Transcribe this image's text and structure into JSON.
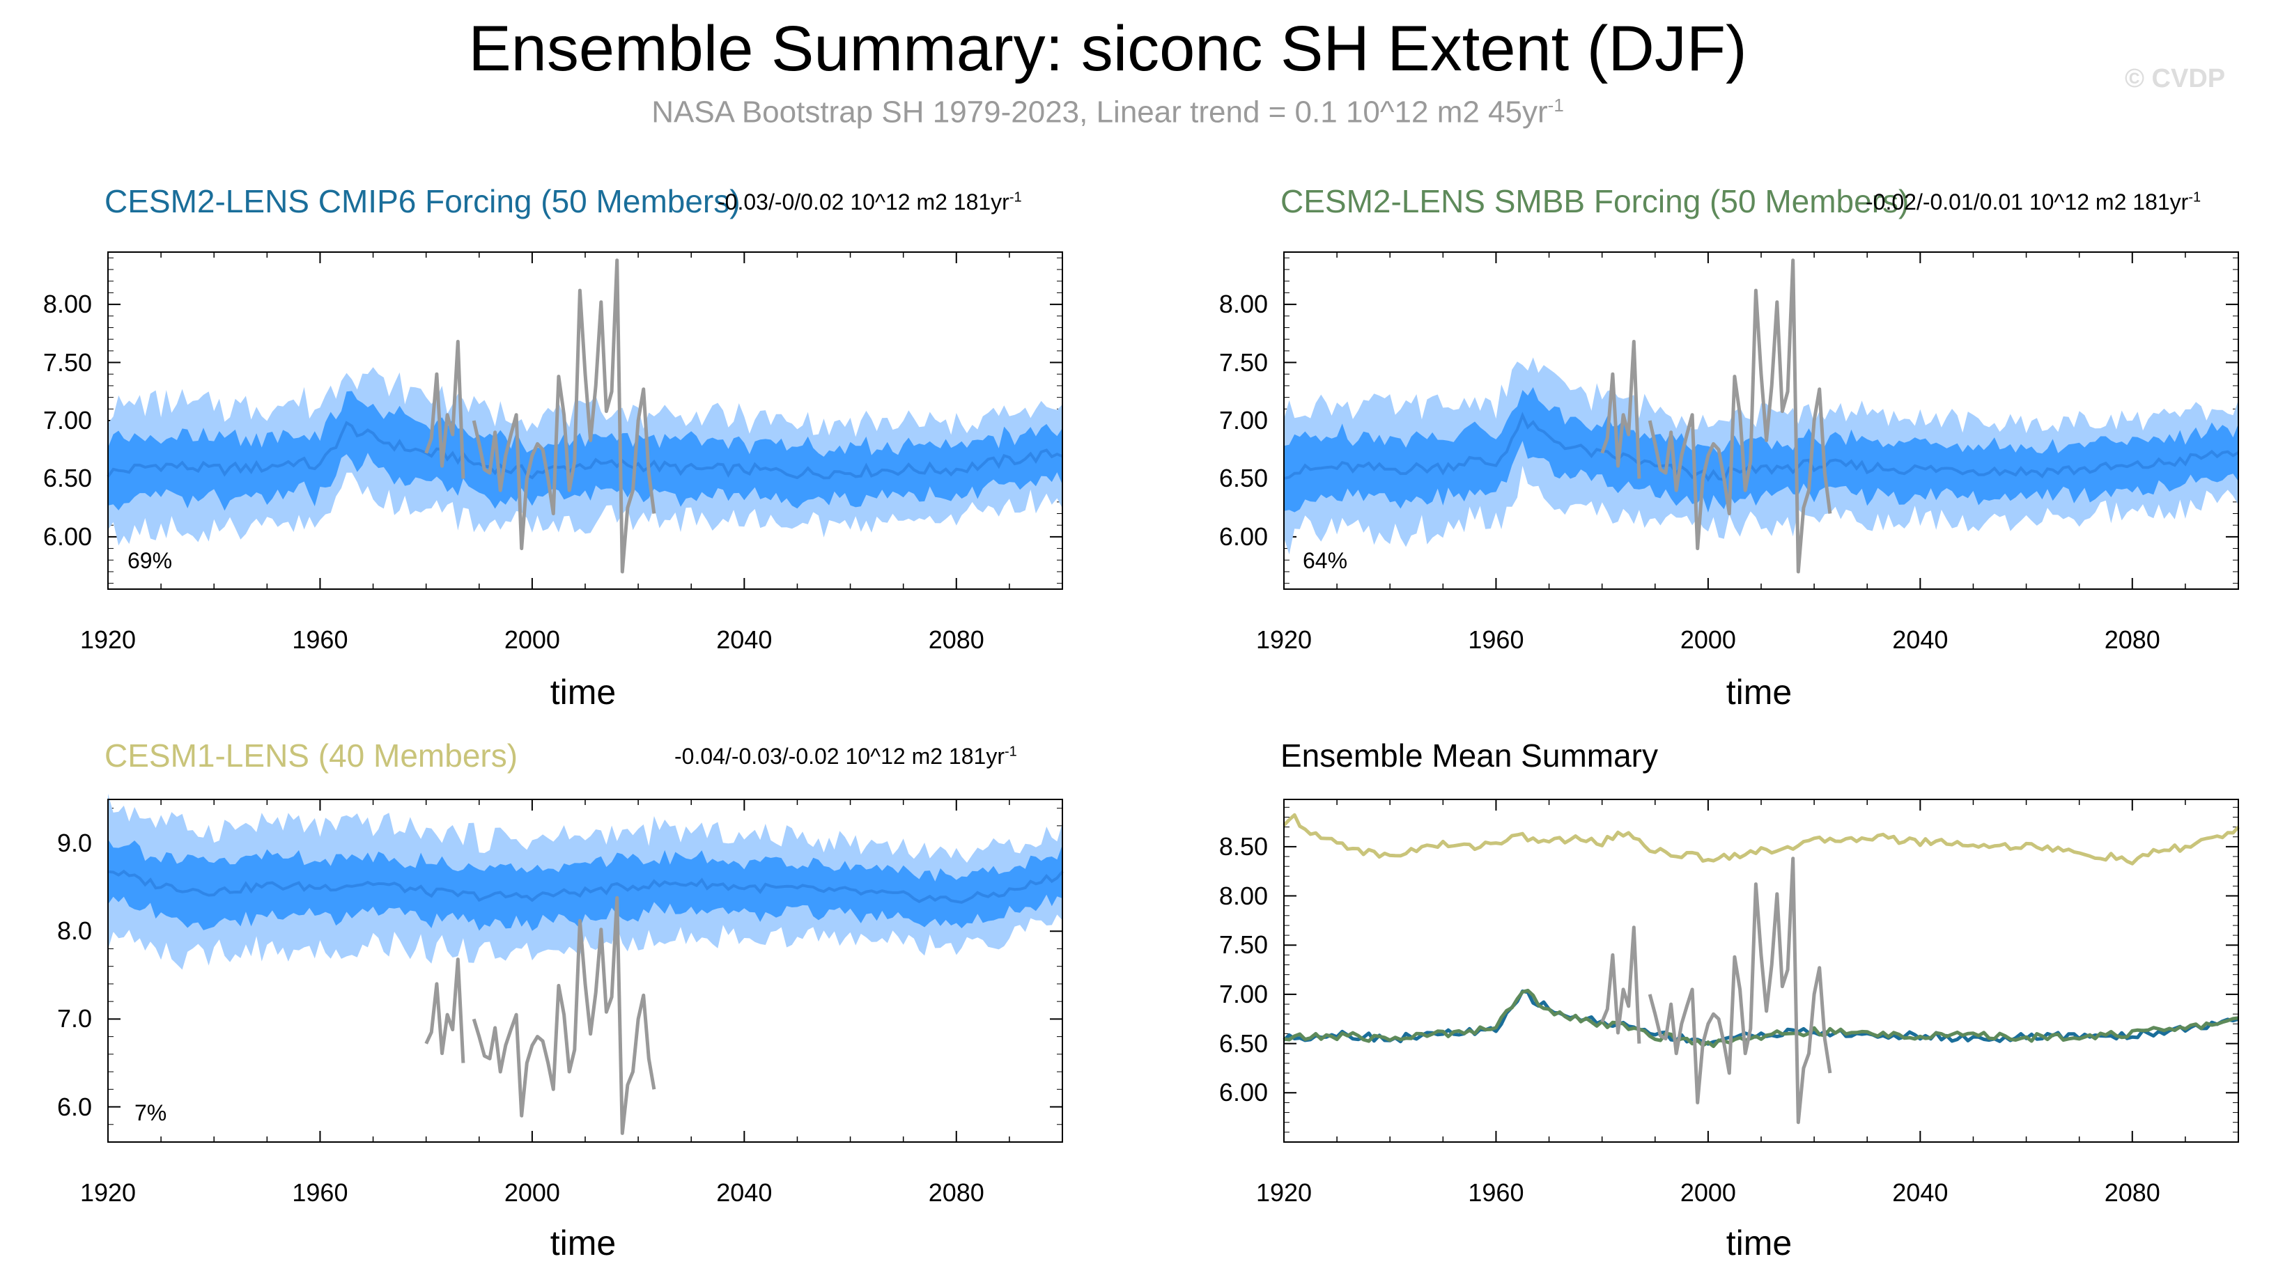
{
  "figure": {
    "title": "Ensemble Summary: siconc SH Extent (DJF)",
    "subtitle": "NASA Bootstrap SH 1979-2023, Linear trend = 0.1 10^12 m2 45yr",
    "subtitle_sup": "-1",
    "watermark": "© CVDP"
  },
  "colors": {
    "band_outer": "#a6cfff",
    "band_inner": "#3d9bff",
    "ens_mean_line": "#2f86e8",
    "obs": "#999999",
    "cesm2_cmip6": "#1a6e9a",
    "cesm2_smbb": "#5e8a5a",
    "cesm1": "#c9c47a"
  },
  "observations_djf_extent": {
    "years": [
      1979,
      1980,
      1981,
      1982,
      1983,
      1984,
      1985,
      1986,
      1987,
      1988,
      1989,
      1990,
      1991,
      1992,
      1993,
      1994,
      1995,
      1996,
      1997,
      1998,
      1999,
      2000,
      2001,
      2002,
      2003,
      2004,
      2005,
      2006,
      2007,
      2008,
      2009,
      2010,
      2011,
      2012,
      2013,
      2014,
      2015,
      2016,
      2017,
      2018,
      2019,
      2020,
      2021,
      2022,
      2023
    ],
    "values": [
      null,
      6.72,
      6.85,
      7.4,
      6.61,
      7.05,
      6.88,
      7.68,
      6.5,
      null,
      7.0,
      6.8,
      6.58,
      6.55,
      6.9,
      6.4,
      6.7,
      6.88,
      7.05,
      5.9,
      6.5,
      6.7,
      6.8,
      6.75,
      6.5,
      6.2,
      7.38,
      7.05,
      6.4,
      6.65,
      8.12,
      7.4,
      6.83,
      7.3,
      8.02,
      7.08,
      7.25,
      8.38,
      5.7,
      6.25,
      6.4,
      7.0,
      7.27,
      6.55,
      6.2
    ]
  },
  "chart_data": [
    {
      "type": "area",
      "panel": "cesm2-cmip6",
      "title": "CESM2-LENS CMIP6 Forcing (50 Members)",
      "trend_text": "-0.03/-0/0.02 10^12 m2 181yr",
      "trend_sup": "-1",
      "percent_label": "69%",
      "xlabel": "time",
      "xlim": [
        1920,
        2100
      ],
      "ylim": [
        5.55,
        8.45
      ],
      "xticks": [
        1920,
        1960,
        2000,
        2040,
        2080
      ],
      "yticks": [
        6.0,
        6.5,
        7.0,
        7.5,
        8.0
      ],
      "ytick_labels": [
        "6.00",
        "6.50",
        "7.00",
        "7.50",
        "8.00"
      ],
      "series": [
        {
          "name": "ensemble mean",
          "segments": [
            [
              1920,
              6.55
            ],
            [
              1930,
              6.62
            ],
            [
              1940,
              6.58
            ],
            [
              1950,
              6.6
            ],
            [
              1955,
              6.65
            ],
            [
              1960,
              6.6
            ],
            [
              1965,
              6.95
            ],
            [
              1970,
              6.85
            ],
            [
              1975,
              6.78
            ],
            [
              1980,
              6.72
            ],
            [
              1985,
              6.7
            ],
            [
              1990,
              6.62
            ],
            [
              2000,
              6.55
            ],
            [
              2010,
              6.62
            ],
            [
              2020,
              6.62
            ],
            [
              2030,
              6.58
            ],
            [
              2040,
              6.58
            ],
            [
              2050,
              6.55
            ],
            [
              2060,
              6.56
            ],
            [
              2070,
              6.58
            ],
            [
              2080,
              6.58
            ],
            [
              2090,
              6.66
            ],
            [
              2100,
              6.72
            ]
          ]
        },
        {
          "name": "inner percentile band half-width",
          "segments": [
            [
              1920,
              0.28
            ],
            [
              2100,
              0.2
            ]
          ]
        },
        {
          "name": "outer percentile band half-width",
          "segments": [
            [
              1920,
              0.55
            ],
            [
              2100,
              0.38
            ]
          ]
        }
      ]
    },
    {
      "type": "area",
      "panel": "cesm2-smbb",
      "title": "CESM2-LENS SMBB Forcing (50 Members)",
      "trend_text": "-0.02/-0.01/0.01 10^12 m2 181yr",
      "trend_sup": "-1",
      "percent_label": "64%",
      "xlabel": "time",
      "xlim": [
        1920,
        2100
      ],
      "ylim": [
        5.55,
        8.45
      ],
      "xticks": [
        1920,
        1960,
        2000,
        2040,
        2080
      ],
      "yticks": [
        6.0,
        6.5,
        7.0,
        7.5,
        8.0
      ],
      "ytick_labels": [
        "6.00",
        "6.50",
        "7.00",
        "7.50",
        "8.00"
      ],
      "series": [
        {
          "name": "ensemble mean",
          "segments": [
            [
              1920,
              6.55
            ],
            [
              1930,
              6.6
            ],
            [
              1940,
              6.58
            ],
            [
              1950,
              6.6
            ],
            [
              1955,
              6.66
            ],
            [
              1960,
              6.62
            ],
            [
              1965,
              7.0
            ],
            [
              1970,
              6.85
            ],
            [
              1975,
              6.76
            ],
            [
              1980,
              6.7
            ],
            [
              1985,
              6.68
            ],
            [
              1990,
              6.6
            ],
            [
              2000,
              6.52
            ],
            [
              2010,
              6.58
            ],
            [
              2020,
              6.62
            ],
            [
              2030,
              6.6
            ],
            [
              2040,
              6.58
            ],
            [
              2050,
              6.58
            ],
            [
              2060,
              6.56
            ],
            [
              2070,
              6.58
            ],
            [
              2080,
              6.6
            ],
            [
              2090,
              6.66
            ],
            [
              2100,
              6.74
            ]
          ]
        },
        {
          "name": "inner percentile band half-width",
          "segments": [
            [
              1920,
              0.28
            ],
            [
              2100,
              0.2
            ]
          ]
        },
        {
          "name": "outer percentile band half-width",
          "segments": [
            [
              1920,
              0.55
            ],
            [
              2100,
              0.38
            ]
          ]
        }
      ]
    },
    {
      "type": "area",
      "panel": "cesm1",
      "title": "CESM1-LENS (40 Members)",
      "trend_text": "-0.04/-0.03/-0.02 10^12 m2 181yr",
      "trend_sup": "-1",
      "percent_label": "7%",
      "xlabel": "time",
      "xlim": [
        1920,
        2100
      ],
      "ylim": [
        5.6,
        9.5
      ],
      "xticks": [
        1920,
        1960,
        2000,
        2040,
        2080
      ],
      "yticks": [
        6.0,
        7.0,
        8.0,
        9.0
      ],
      "ytick_labels": [
        "6.0",
        "7.0",
        "8.0",
        "9.0"
      ],
      "series": [
        {
          "name": "ensemble mean",
          "segments": [
            [
              1920,
              8.7
            ],
            [
              1925,
              8.6
            ],
            [
              1930,
              8.52
            ],
            [
              1940,
              8.45
            ],
            [
              1950,
              8.52
            ],
            [
              1960,
              8.5
            ],
            [
              1970,
              8.55
            ],
            [
              1980,
              8.45
            ],
            [
              1990,
              8.4
            ],
            [
              2000,
              8.4
            ],
            [
              2010,
              8.45
            ],
            [
              2020,
              8.52
            ],
            [
              2030,
              8.55
            ],
            [
              2040,
              8.5
            ],
            [
              2050,
              8.48
            ],
            [
              2060,
              8.45
            ],
            [
              2070,
              8.4
            ],
            [
              2080,
              8.35
            ],
            [
              2090,
              8.45
            ],
            [
              2100,
              8.65
            ]
          ]
        },
        {
          "name": "inner percentile band half-width",
          "segments": [
            [
              1920,
              0.35
            ],
            [
              2100,
              0.25
            ]
          ]
        },
        {
          "name": "outer percentile band half-width",
          "segments": [
            [
              1920,
              0.75
            ],
            [
              2100,
              0.5
            ]
          ]
        }
      ]
    },
    {
      "type": "line",
      "panel": "ensemble-mean-summary",
      "title": "Ensemble Mean Summary",
      "xlabel": "time",
      "xlim": [
        1920,
        2100
      ],
      "ylim": [
        5.5,
        8.98
      ],
      "xticks": [
        1920,
        1960,
        2000,
        2040,
        2080
      ],
      "yticks": [
        6.0,
        6.5,
        7.0,
        7.5,
        8.0,
        8.5
      ],
      "ytick_labels": [
        "6.00",
        "6.50",
        "7.00",
        "7.50",
        "8.00",
        "8.50"
      ],
      "series": [
        {
          "name": "CESM1-LENS ensemble mean",
          "color_key": "cesm1",
          "segments": [
            [
              1920,
              8.7
            ],
            [
              1922,
              8.8
            ],
            [
              1925,
              8.62
            ],
            [
              1930,
              8.55
            ],
            [
              1935,
              8.45
            ],
            [
              1940,
              8.4
            ],
            [
              1945,
              8.48
            ],
            [
              1950,
              8.52
            ],
            [
              1955,
              8.5
            ],
            [
              1960,
              8.55
            ],
            [
              1965,
              8.6
            ],
            [
              1970,
              8.55
            ],
            [
              1975,
              8.58
            ],
            [
              1980,
              8.55
            ],
            [
              1985,
              8.65
            ],
            [
              1990,
              8.45
            ],
            [
              1995,
              8.42
            ],
            [
              2000,
              8.38
            ],
            [
              2005,
              8.42
            ],
            [
              2010,
              8.45
            ],
            [
              2015,
              8.5
            ],
            [
              2020,
              8.55
            ],
            [
              2025,
              8.58
            ],
            [
              2030,
              8.6
            ],
            [
              2035,
              8.58
            ],
            [
              2040,
              8.55
            ],
            [
              2045,
              8.55
            ],
            [
              2050,
              8.52
            ],
            [
              2055,
              8.5
            ],
            [
              2060,
              8.52
            ],
            [
              2065,
              8.48
            ],
            [
              2070,
              8.42
            ],
            [
              2075,
              8.4
            ],
            [
              2080,
              8.35
            ],
            [
              2085,
              8.45
            ],
            [
              2090,
              8.5
            ],
            [
              2095,
              8.58
            ],
            [
              2100,
              8.68
            ]
          ]
        },
        {
          "name": "CESM2-LENS CMIP6 ensemble mean",
          "color_key": "cesm2_cmip6",
          "segments": [
            [
              1920,
              6.55
            ],
            [
              1930,
              6.6
            ],
            [
              1940,
              6.55
            ],
            [
              1950,
              6.6
            ],
            [
              1955,
              6.62
            ],
            [
              1960,
              6.62
            ],
            [
              1965,
              7.02
            ],
            [
              1970,
              6.85
            ],
            [
              1975,
              6.76
            ],
            [
              1980,
              6.72
            ],
            [
              1985,
              6.68
            ],
            [
              1990,
              6.6
            ],
            [
              2000,
              6.52
            ],
            [
              2010,
              6.6
            ],
            [
              2020,
              6.62
            ],
            [
              2030,
              6.58
            ],
            [
              2040,
              6.58
            ],
            [
              2050,
              6.55
            ],
            [
              2060,
              6.56
            ],
            [
              2070,
              6.58
            ],
            [
              2080,
              6.58
            ],
            [
              2090,
              6.66
            ],
            [
              2100,
              6.72
            ]
          ]
        },
        {
          "name": "CESM2-LENS SMBB ensemble mean",
          "color_key": "cesm2_smbb",
          "segments": [
            [
              1920,
              6.55
            ],
            [
              1930,
              6.58
            ],
            [
              1940,
              6.55
            ],
            [
              1950,
              6.6
            ],
            [
              1955,
              6.64
            ],
            [
              1960,
              6.65
            ],
            [
              1965,
              7.05
            ],
            [
              1970,
              6.85
            ],
            [
              1975,
              6.76
            ],
            [
              1980,
              6.7
            ],
            [
              1985,
              6.66
            ],
            [
              1990,
              6.58
            ],
            [
              2000,
              6.5
            ],
            [
              2010,
              6.58
            ],
            [
              2020,
              6.62
            ],
            [
              2030,
              6.6
            ],
            [
              2040,
              6.58
            ],
            [
              2050,
              6.58
            ],
            [
              2060,
              6.56
            ],
            [
              2070,
              6.58
            ],
            [
              2080,
              6.6
            ],
            [
              2090,
              6.66
            ],
            [
              2100,
              6.74
            ]
          ]
        },
        {
          "name": "NASA Bootstrap observations",
          "color_key": "obs",
          "segments": []
        }
      ]
    }
  ]
}
